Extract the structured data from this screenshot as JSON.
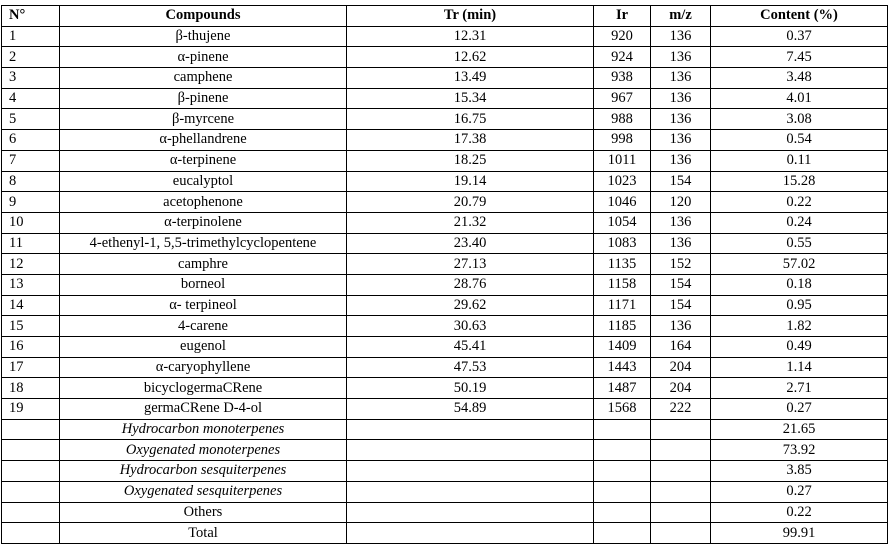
{
  "headers": [
    "N°",
    "Compounds",
    "Tr (min)",
    "Ir",
    "m/z",
    "Content (%)"
  ],
  "rows": [
    [
      "1",
      "β-thujene",
      "12.31",
      "920",
      "136",
      "0.37"
    ],
    [
      "2",
      "α-pinene",
      "12.62",
      "924",
      "136",
      "7.45"
    ],
    [
      "3",
      "camphene",
      "13.49",
      "938",
      "136",
      "3.48"
    ],
    [
      "4",
      "β-pinene",
      "15.34",
      "967",
      "136",
      "4.01"
    ],
    [
      "5",
      "β-myrcene",
      "16.75",
      "988",
      "136",
      "3.08"
    ],
    [
      "6",
      "α-phellandrene",
      "17.38",
      "998",
      "136",
      "0.54"
    ],
    [
      "7",
      "α-terpinene",
      "18.25",
      "1011",
      "136",
      "0.11"
    ],
    [
      "8",
      "eucalyptol",
      "19.14",
      "1023",
      "154",
      "15.28"
    ],
    [
      "9",
      "acetophenone",
      "20.79",
      "1046",
      "120",
      "0.22"
    ],
    [
      "10",
      "α-terpinolene",
      "21.32",
      "1054",
      "136",
      "0.24"
    ],
    [
      "11",
      "4-ethenyl-1, 5,5-trimethylcyclopentene",
      "23.40",
      "1083",
      "136",
      "0.55"
    ],
    [
      "12",
      "camphre",
      "27.13",
      "1135",
      "152",
      "57.02"
    ],
    [
      "13",
      "borneol",
      "28.76",
      "1158",
      "154",
      "0.18"
    ],
    [
      "14",
      "α- terpineol",
      "29.62",
      "1171",
      "154",
      "0.95"
    ],
    [
      "15",
      "4-carene",
      "30.63",
      "1185",
      "136",
      "1.82"
    ],
    [
      "16",
      "eugenol",
      "45.41",
      "1409",
      "164",
      "0.49"
    ],
    [
      "17",
      "α-caryophyllene",
      "47.53",
      "1443",
      "204",
      "1.14"
    ],
    [
      "18",
      "bicyclogermaCRene",
      "50.19",
      "1487",
      "204",
      "2.71"
    ],
    [
      "19",
      "germaCRene D-4-ol",
      "54.89",
      "1568",
      "222",
      "0.27"
    ]
  ],
  "summary": [
    {
      "label": "Hydrocarbon monoterpenes",
      "value": "21.65",
      "italic": true
    },
    {
      "label": "Oxygenated monoterpenes",
      "value": "73.92",
      "italic": true
    },
    {
      "label": "Hydrocarbon sesquiterpenes",
      "value": "3.85",
      "italic": true
    },
    {
      "label": "Oxygenated sesquiterpenes",
      "value": "0.27",
      "italic": true
    },
    {
      "label": "Others",
      "value": "0.22",
      "italic": false
    },
    {
      "label": "Total",
      "value": "99.91",
      "italic": false
    }
  ]
}
